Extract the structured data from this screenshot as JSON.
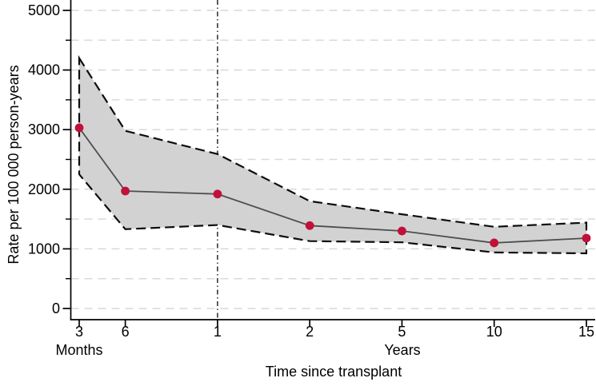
{
  "chart_data": {
    "type": "line",
    "title": "",
    "xlabel": "Time since transplant",
    "ylabel": "Rate per 100 000 person-years",
    "x_categories": [
      "3",
      "6",
      "1",
      "2",
      "5",
      "10",
      "15"
    ],
    "x_units": [
      {
        "label": "Months",
        "applies_to": [
          "3",
          "6"
        ],
        "anchor_category": "3"
      },
      {
        "label": "Years",
        "applies_to": [
          "1",
          "2",
          "5",
          "10",
          "15"
        ],
        "anchor_category": "5"
      }
    ],
    "series": [
      {
        "name": "Rate per 100 000 person-years",
        "values": [
          3030,
          1970,
          1920,
          1390,
          1300,
          1100,
          1180
        ]
      }
    ],
    "ci_upper": [
      4200,
      2980,
      2590,
      1800,
      1580,
      1370,
      1440
    ],
    "ci_lower": [
      2250,
      1330,
      1400,
      1130,
      1110,
      940,
      925
    ],
    "yticks": [
      0,
      1000,
      2000,
      3000,
      4000,
      5000
    ],
    "y_minor_step": 500,
    "ylim": [
      0,
      5175
    ],
    "vline_at_category": "1",
    "grid": "horizontal-dashed",
    "legend": "none",
    "band_style": "shaded-with-long-dashed-border",
    "marker_style": "filled-circle",
    "colors": {
      "marker": "#c1103a",
      "line": "#4e4e4e",
      "band_fill": "#d2d2d2",
      "band_edge": "#0d0d0d",
      "gridline": "#d9d9d9",
      "vline": "#1a1a1a",
      "axis": "#000000",
      "background": "#ffffff"
    }
  }
}
